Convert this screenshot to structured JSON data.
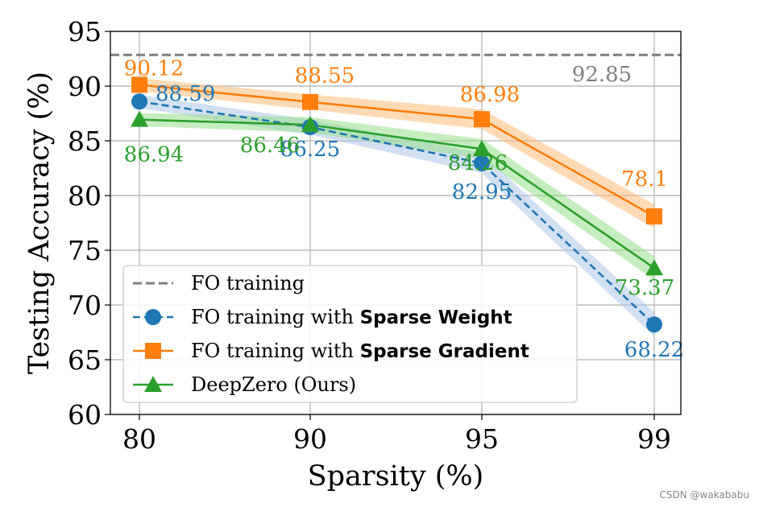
{
  "chart_data": {
    "type": "line",
    "xlabel": "Sparsity (%)",
    "ylabel": "Testing Accuracy (%)",
    "categories": [
      "80",
      "90",
      "95",
      "99"
    ],
    "ylim": [
      60,
      95
    ],
    "yticks": [
      60,
      65,
      70,
      75,
      80,
      85,
      90,
      95
    ],
    "grid": true,
    "legend_position": "lower-left",
    "reference_line": {
      "name": "FO training",
      "value": 92.85,
      "label": "92.85",
      "color": "#7f7f7f"
    },
    "series": [
      {
        "id": "sparse-weight",
        "name_prefix": "FO training with ",
        "name_bold": "Sparse Weight",
        "values": [
          88.59,
          86.25,
          82.95,
          68.22
        ],
        "labels": [
          "88.59",
          "86.25",
          "82.95",
          "68.22"
        ],
        "color": "#1f77b4",
        "band_color": "#aec7e8",
        "marker": "circle",
        "dashed": true
      },
      {
        "id": "sparse-gradient",
        "name_prefix": "FO training with ",
        "name_bold": "Sparse Gradient",
        "values": [
          90.12,
          88.55,
          86.98,
          78.1
        ],
        "labels": [
          "90.12",
          "88.55",
          "86.98",
          "78.1"
        ],
        "color": "#ff7f0e",
        "band_color": "#ffbb78",
        "marker": "square",
        "dashed": false
      },
      {
        "id": "deepzero",
        "name_prefix": "DeepZero (Ours)",
        "name_bold": "",
        "values": [
          86.94,
          86.46,
          84.26,
          73.37
        ],
        "labels": [
          "86.94",
          "86.46",
          "84.26",
          "73.37"
        ],
        "color": "#2ca02c",
        "band_color": "#98df8a",
        "marker": "triangle",
        "dashed": false
      }
    ]
  },
  "watermark": "CSDN @wakababu"
}
